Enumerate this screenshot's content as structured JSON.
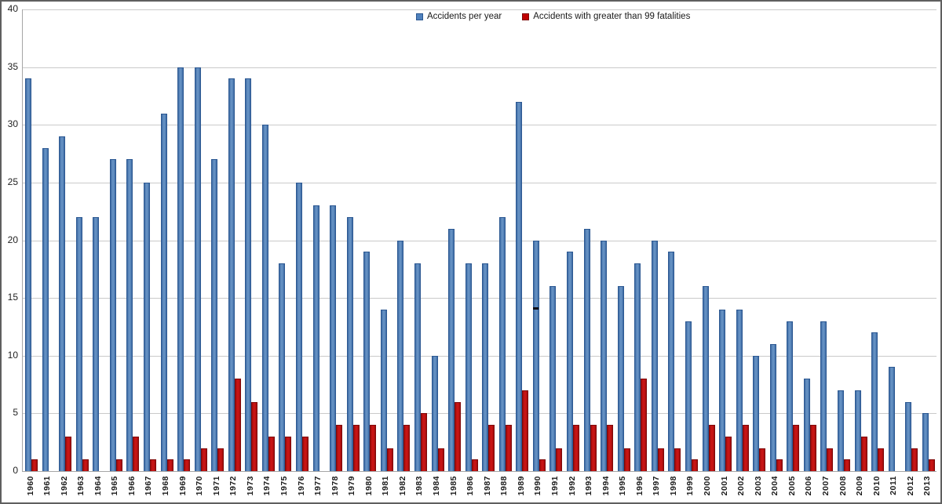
{
  "frame": {
    "background": "#FFFFFF",
    "border_color": "#5F5F5F"
  },
  "legend": {
    "items": [
      {
        "label": "Accidents per year",
        "color": "#4F81BD",
        "border": "#2C5892"
      },
      {
        "label": "Accidents with greater than 99 fatalities",
        "color": "#C00000",
        "border": "#7F0808"
      }
    ]
  },
  "colors": {
    "series_blue": "#4F81BD",
    "series_red": "#C00000",
    "gridline": "#CACACA",
    "axis_line": "#A6A6A6",
    "tick_text": "#1F1F1F"
  },
  "chart_data": {
    "type": "bar",
    "title": "",
    "xlabel": "",
    "ylabel": "",
    "ylim": [
      0,
      40
    ],
    "yticks": [
      0,
      5,
      10,
      15,
      20,
      25,
      30,
      35,
      40
    ],
    "grid": true,
    "legend_position": "top-center",
    "categories": [
      "1960",
      "1961",
      "1962",
      "1963",
      "1964",
      "1965",
      "1966",
      "1967",
      "1968",
      "1969",
      "1970",
      "1971",
      "1972",
      "1973",
      "1974",
      "1975",
      "1976",
      "1977",
      "1978",
      "1979",
      "1980",
      "1981",
      "1982",
      "1983",
      "1984",
      "1985",
      "1986",
      "1987",
      "1988",
      "1989",
      "1990",
      "1991",
      "1992",
      "1993",
      "1994",
      "1995",
      "1996",
      "1997",
      "1998",
      "1999",
      "2000",
      "2001",
      "2002",
      "2003",
      "2004",
      "2005",
      "2006",
      "2007",
      "2008",
      "2009",
      "2010",
      "2011",
      "2012",
      "2013"
    ],
    "series": [
      {
        "name": "Accidents per year",
        "color": "#4F81BD",
        "values": [
          34,
          28,
          29,
          22,
          22,
          27,
          27,
          25,
          31,
          35,
          35,
          27,
          34,
          34,
          30,
          18,
          25,
          23,
          23,
          22,
          19,
          14,
          20,
          18,
          10,
          21,
          18,
          18,
          22,
          32,
          20,
          16,
          19,
          21,
          20,
          16,
          18,
          20,
          19,
          13,
          16,
          14,
          14,
          10,
          11,
          13,
          8,
          13,
          7,
          7,
          12,
          9,
          6,
          5
        ]
      },
      {
        "name": "Accidents with greater than 99 fatalities",
        "color": "#C00000",
        "values": [
          1,
          0,
          3,
          1,
          0,
          1,
          3,
          1,
          1,
          1,
          2,
          2,
          8,
          6,
          3,
          3,
          3,
          0,
          4,
          4,
          4,
          2,
          4,
          5,
          2,
          6,
          1,
          4,
          4,
          7,
          1,
          2,
          4,
          4,
          4,
          2,
          8,
          2,
          2,
          1,
          4,
          3,
          4,
          2,
          1,
          4,
          4,
          2,
          1,
          3,
          2,
          0,
          2,
          1
        ]
      }
    ]
  }
}
